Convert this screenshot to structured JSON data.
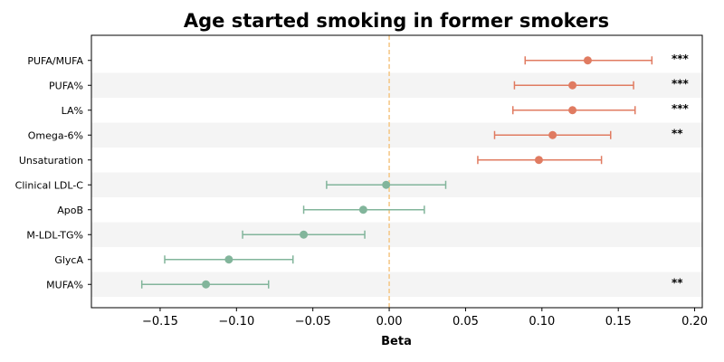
{
  "chart_data": {
    "type": "forest",
    "title": "Age started smoking in former smokers",
    "xlabel": "Beta",
    "xlim": [
      -0.195,
      0.205
    ],
    "xticks": [
      -0.15,
      -0.1,
      -0.05,
      0.0,
      0.05,
      0.1,
      0.15,
      0.2
    ],
    "xtick_labels": [
      "−0.15",
      "−0.10",
      "−0.05",
      "0.00",
      "0.05",
      "0.10",
      "0.15",
      "0.20"
    ],
    "reference_line": 0.0,
    "grid": false,
    "colors": {
      "positive": "#e07b61",
      "negative": "#82b59b",
      "reference": "#f5c98a",
      "band": "#f4f4f4"
    },
    "rows": [
      {
        "label": "PUFA/MUFA",
        "beta": 0.13,
        "ci_low": 0.089,
        "ci_high": 0.172,
        "sig": "***"
      },
      {
        "label": "PUFA%",
        "beta": 0.12,
        "ci_low": 0.082,
        "ci_high": 0.16,
        "sig": "***"
      },
      {
        "label": "LA%",
        "beta": 0.12,
        "ci_low": 0.081,
        "ci_high": 0.161,
        "sig": "***"
      },
      {
        "label": "Omega-6%",
        "beta": 0.107,
        "ci_low": 0.069,
        "ci_high": 0.145,
        "sig": "**"
      },
      {
        "label": "Unsaturation",
        "beta": 0.098,
        "ci_low": 0.058,
        "ci_high": 0.139,
        "sig": ""
      },
      {
        "label": "Clinical LDL-C",
        "beta": -0.002,
        "ci_low": -0.041,
        "ci_high": 0.037,
        "sig": ""
      },
      {
        "label": "ApoB",
        "beta": -0.017,
        "ci_low": -0.056,
        "ci_high": 0.023,
        "sig": ""
      },
      {
        "label": "M-LDL-TG%",
        "beta": -0.056,
        "ci_low": -0.096,
        "ci_high": -0.016,
        "sig": ""
      },
      {
        "label": "GlycA",
        "beta": -0.105,
        "ci_low": -0.147,
        "ci_high": -0.063,
        "sig": ""
      },
      {
        "label": "MUFA%",
        "beta": -0.12,
        "ci_low": -0.162,
        "ci_high": -0.079,
        "sig": "**"
      }
    ]
  }
}
